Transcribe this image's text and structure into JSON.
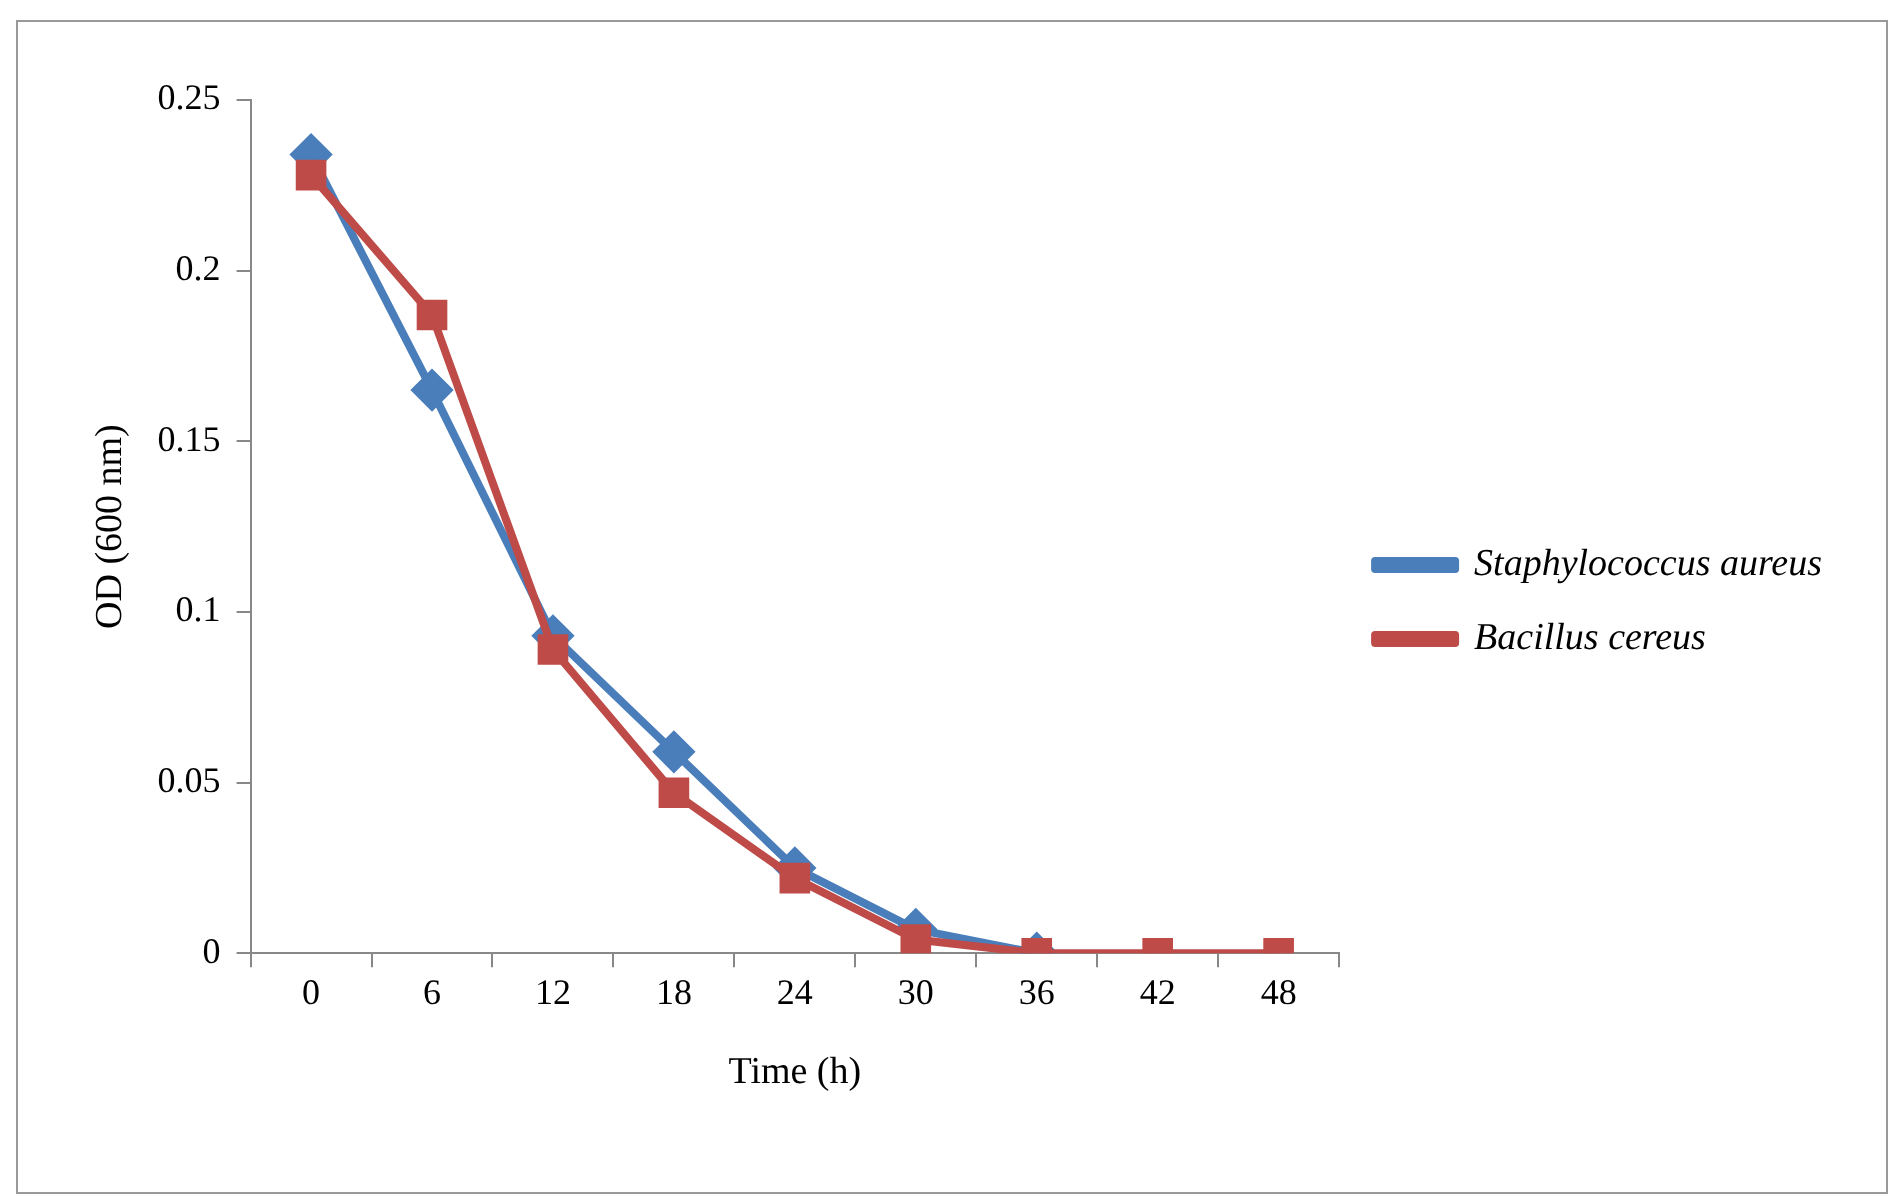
{
  "chart_data": {
    "type": "line",
    "xlabel": "Time (h)",
    "ylabel": "OD (600 nm)",
    "categories": [
      "0",
      "6",
      "12",
      "18",
      "24",
      "30",
      "36",
      "42",
      "48"
    ],
    "ylim": [
      0,
      0.25
    ],
    "yticks": [
      0,
      0.05,
      0.1,
      0.15,
      0.2,
      0.25
    ],
    "grid": false,
    "legend": "right",
    "series": [
      {
        "name": "Staphylococcus aureus",
        "color": "#4a7ebb",
        "marker": "diamond",
        "values": [
          0.234,
          0.165,
          0.093,
          0.059,
          0.025,
          0.007,
          0,
          null,
          null
        ]
      },
      {
        "name": "Bacillus cereus",
        "color": "#be4b48",
        "marker": "square",
        "values": [
          0.228,
          0.187,
          0.089,
          0.047,
          0.022,
          0.004,
          0,
          0,
          0
        ]
      }
    ]
  }
}
